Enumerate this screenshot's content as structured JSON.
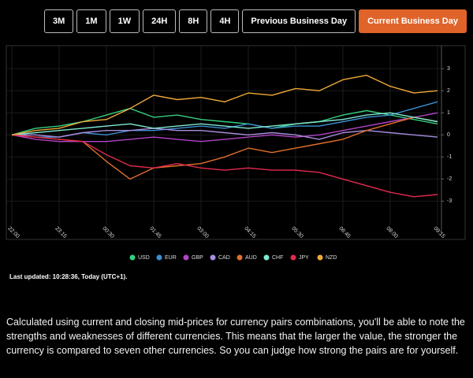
{
  "buttons": [
    "3M",
    "1M",
    "1W",
    "24H",
    "8H",
    "4H",
    "Previous Business Day",
    "Current Business Day"
  ],
  "active_button": 7,
  "chart_data": {
    "type": "line",
    "x": [
      "22:00",
      null,
      "23:15",
      null,
      "00:30",
      null,
      "01:45",
      null,
      "03:00",
      null,
      "04:15",
      null,
      "05:30",
      null,
      "06:45",
      null,
      "08:00",
      null,
      "09:15"
    ],
    "series": [
      {
        "name": "USD",
        "color": "#35d07f",
        "values": [
          0,
          0.3,
          0.4,
          0.6,
          0.9,
          1.2,
          0.8,
          0.9,
          0.7,
          0.6,
          0.5,
          0.3,
          0.5,
          0.6,
          0.9,
          1.1,
          0.9,
          0.7,
          0.5
        ]
      },
      {
        "name": "EUR",
        "color": "#3b8fd0",
        "values": [
          0,
          -0.1,
          -0.1,
          0.1,
          0.0,
          0.2,
          0.2,
          0.3,
          0.4,
          0.3,
          0.5,
          0.3,
          0.4,
          0.4,
          0.6,
          0.8,
          0.9,
          1.2,
          1.5
        ]
      },
      {
        "name": "GBP",
        "color": "#b443c8",
        "values": [
          0,
          -0.2,
          -0.3,
          -0.3,
          -0.3,
          -0.2,
          -0.1,
          -0.2,
          -0.3,
          -0.2,
          -0.1,
          0.0,
          -0.1,
          0.0,
          0.2,
          0.4,
          0.6,
          0.8,
          1.0
        ]
      },
      {
        "name": "CAD",
        "color": "#a98ee0",
        "values": [
          0,
          0.0,
          -0.1,
          0.1,
          0.2,
          0.2,
          0.3,
          0.2,
          0.2,
          0.1,
          0.0,
          0.1,
          0.0,
          -0.2,
          0.1,
          0.2,
          0.1,
          0.0,
          -0.1
        ]
      },
      {
        "name": "AUD",
        "color": "#e0702a",
        "values": [
          0,
          -0.1,
          -0.2,
          -0.3,
          -1.2,
          -2.0,
          -1.5,
          -1.4,
          -1.3,
          -1.0,
          -0.6,
          -0.8,
          -0.6,
          -0.4,
          -0.2,
          0.2,
          0.5,
          0.8,
          0.6
        ]
      },
      {
        "name": "CHF",
        "color": "#80e8d2",
        "values": [
          0,
          0.1,
          0.2,
          0.3,
          0.4,
          0.5,
          0.3,
          0.4,
          0.5,
          0.4,
          0.3,
          0.4,
          0.5,
          0.6,
          0.7,
          0.9,
          1.0,
          0.8,
          0.6
        ]
      },
      {
        "name": "JPY",
        "color": "#e32a4e",
        "values": [
          0,
          -0.1,
          -0.2,
          -0.3,
          -0.9,
          -1.4,
          -1.5,
          -1.3,
          -1.5,
          -1.6,
          -1.5,
          -1.6,
          -1.6,
          -1.7,
          -2.0,
          -2.3,
          -2.6,
          -2.8,
          -2.7
        ]
      },
      {
        "name": "NZD",
        "color": "#f0aa38",
        "values": [
          0,
          0.2,
          0.3,
          0.6,
          0.7,
          1.2,
          1.8,
          1.6,
          1.7,
          1.5,
          1.9,
          1.8,
          2.1,
          2.0,
          2.5,
          2.7,
          2.2,
          1.9,
          2.0
        ]
      }
    ],
    "ylim": [
      -3.7,
      3.9
    ],
    "yticks": [
      -3,
      -2,
      -1,
      0,
      1,
      2,
      3
    ],
    "grid": true
  },
  "last_updated": "Last updated: 10:28:36, Today (UTC+1).",
  "description": "Calculated using current and closing mid-prices for currency pairs combinations, you'll be able to note the strengths and weaknesses of different currencies. This means that the larger the value, the stronger the currency is compared to seven other currencies. So you can judge how strong the pairs are for yourself."
}
